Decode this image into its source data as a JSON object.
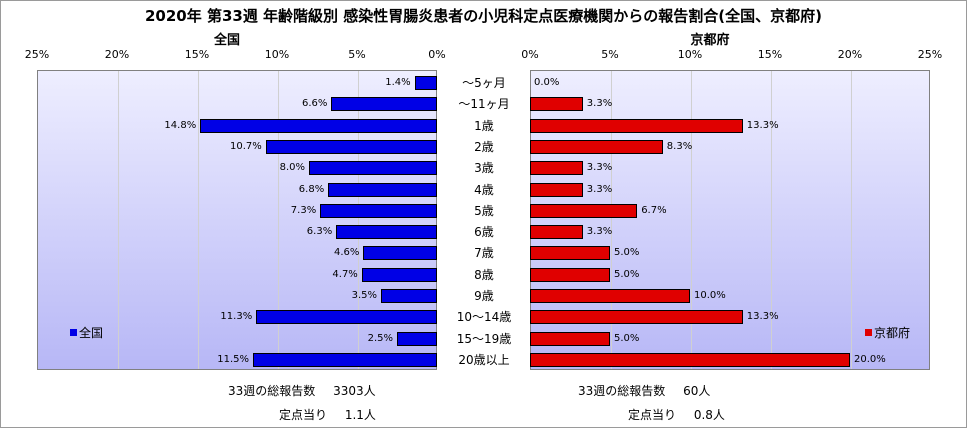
{
  "chart_data": {
    "type": "bar",
    "title": "2020年 第33週 年齢階級別 感染性胃腸炎患者の小児科定点医療機関からの報告割合(全国、京都府)",
    "categories": [
      "～5ヶ月",
      "～11ヶ月",
      "1歳",
      "2歳",
      "3歳",
      "4歳",
      "5歳",
      "6歳",
      "7歳",
      "8歳",
      "9歳",
      "10～14歳",
      "15～19歳",
      "20歳以上"
    ],
    "xlim": [
      0,
      25
    ],
    "ticks": [
      "25%",
      "20%",
      "15%",
      "10%",
      "5%",
      "0%"
    ],
    "ticks_right": [
      "0%",
      "5%",
      "10%",
      "15%",
      "20%",
      "25%"
    ],
    "grid": true,
    "series": [
      {
        "name": "全国",
        "panel_title": "全国",
        "color": "#0000e6",
        "values": [
          1.4,
          6.6,
          14.8,
          10.7,
          8.0,
          6.8,
          7.3,
          6.3,
          4.6,
          4.7,
          3.5,
          11.3,
          2.5,
          11.5
        ],
        "labels": [
          "1.4%",
          "6.6%",
          "14.8%",
          "10.7%",
          "8.0%",
          "6.8%",
          "7.3%",
          "6.3%",
          "4.6%",
          "4.7%",
          "3.5%",
          "11.3%",
          "2.5%",
          "11.5%"
        ],
        "legend_position": "left"
      },
      {
        "name": "京都府",
        "panel_title": "京都府",
        "color": "#e00000",
        "values": [
          0.0,
          3.3,
          13.3,
          8.3,
          3.3,
          3.3,
          6.7,
          3.3,
          5.0,
          5.0,
          10.0,
          13.3,
          5.0,
          20.0
        ],
        "labels": [
          "0.0%",
          "3.3%",
          "13.3%",
          "8.3%",
          "3.3%",
          "3.3%",
          "6.7%",
          "3.3%",
          "5.0%",
          "5.0%",
          "10.0%",
          "13.3%",
          "5.0%",
          "20.0%"
        ],
        "legend_position": "right"
      }
    ]
  },
  "summary": {
    "national": {
      "total_label": "33週の総報告数",
      "total_value": "3303人",
      "per_site_label": "定点当り",
      "per_site_value": "1.1人"
    },
    "kyoto": {
      "total_label": "33週の総報告数",
      "total_value": "60人",
      "per_site_label": "定点当り",
      "per_site_value": "0.8人"
    }
  }
}
